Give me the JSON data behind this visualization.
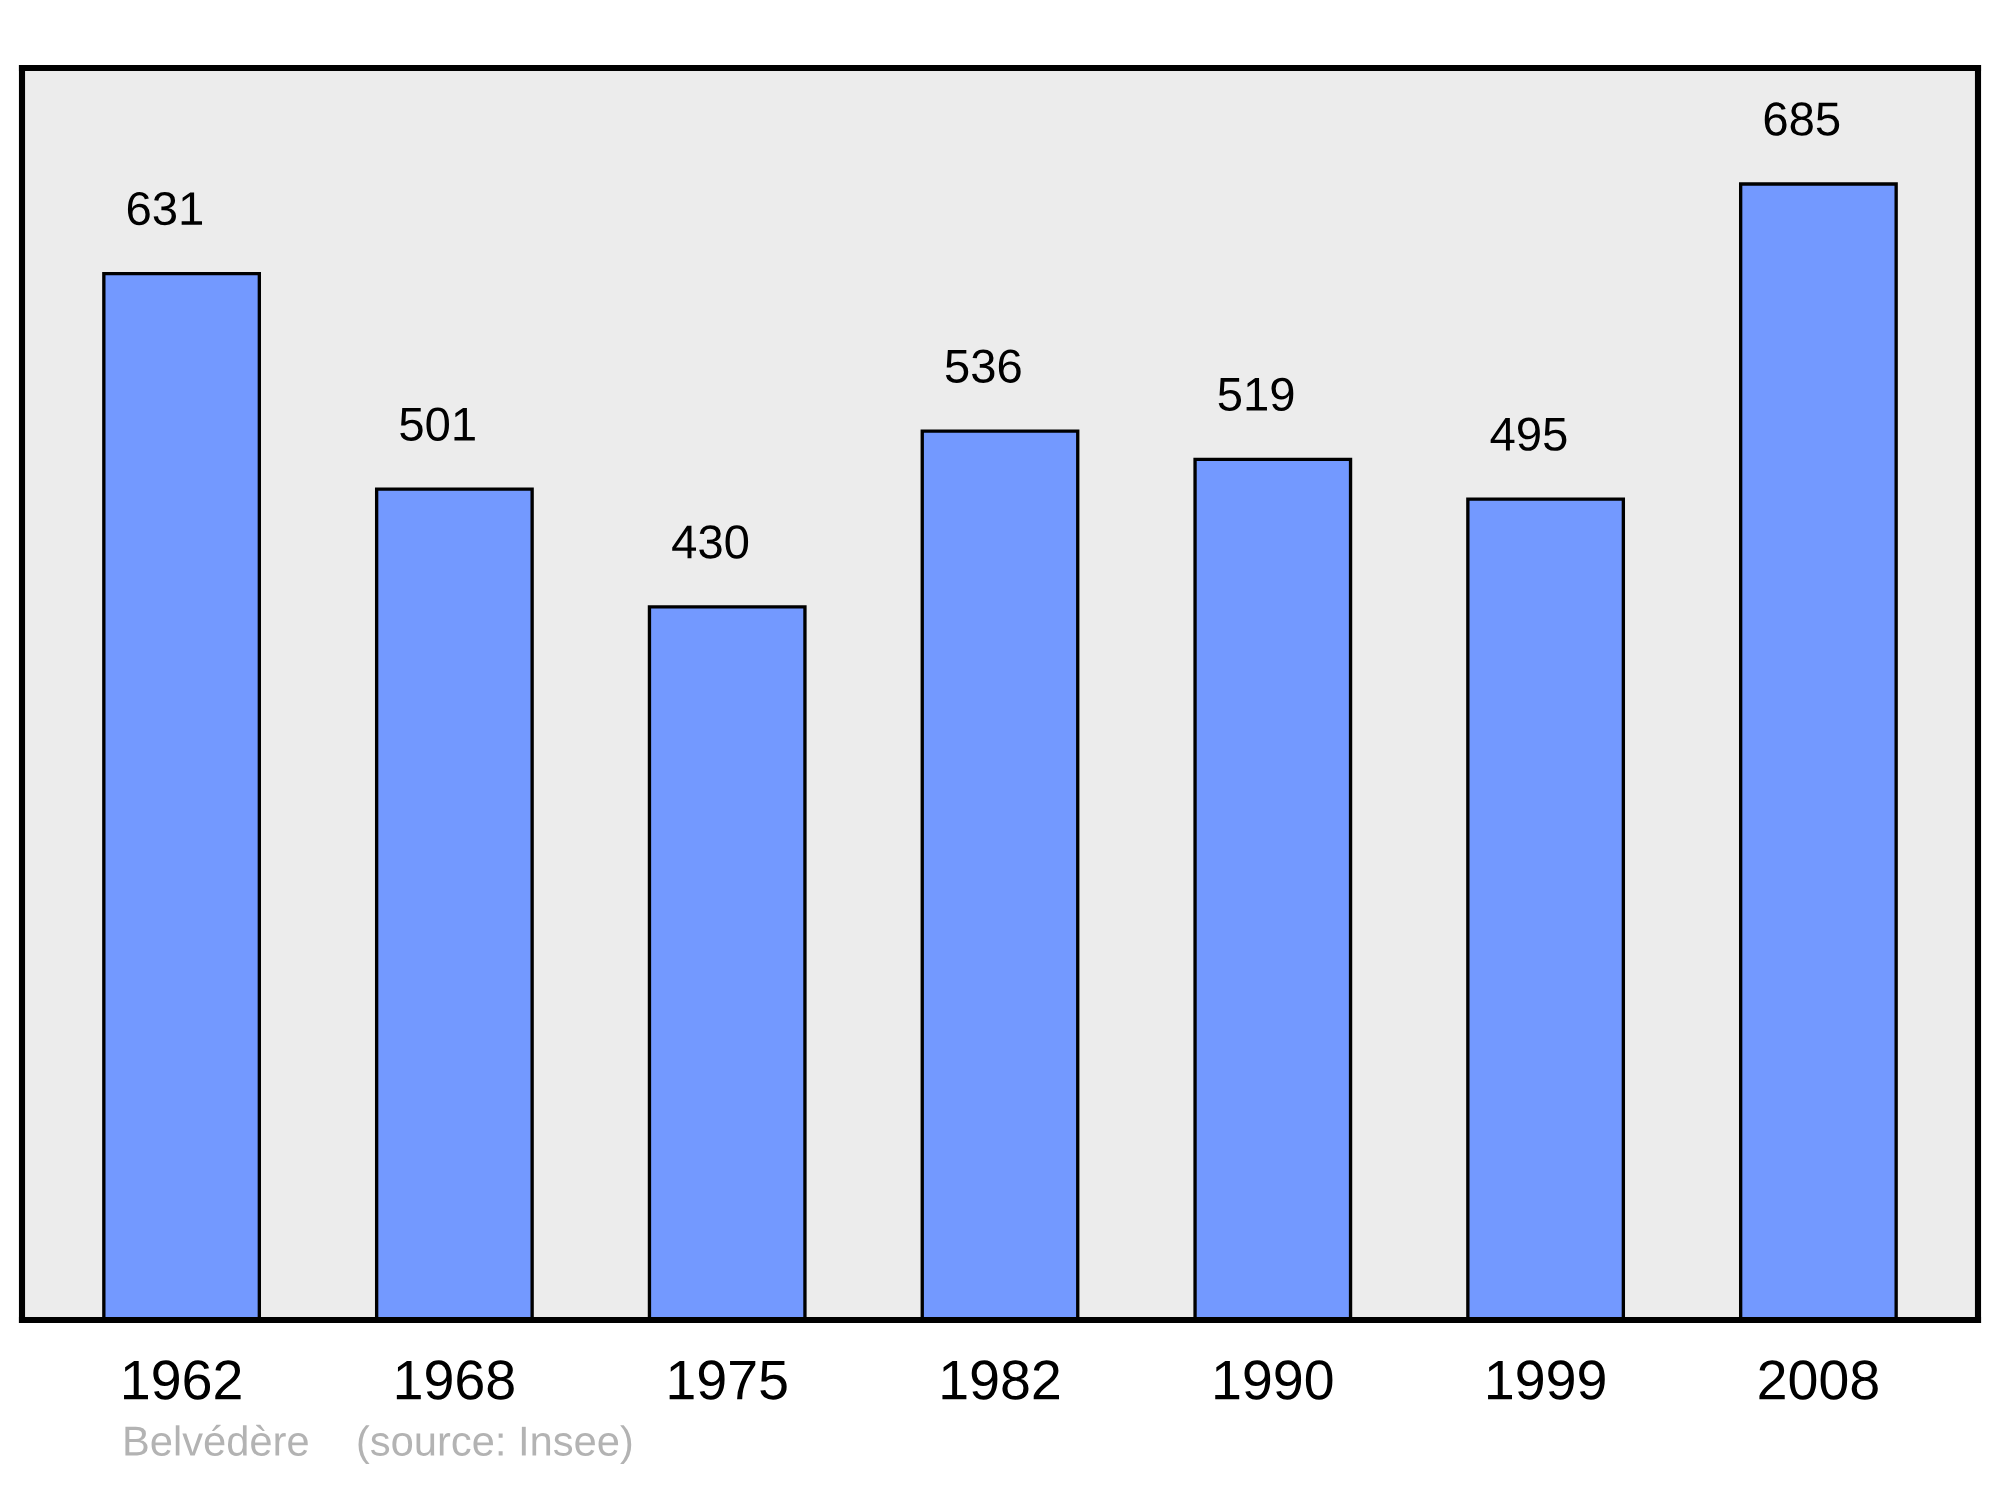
{
  "chart_data": {
    "type": "bar",
    "categories": [
      "1962",
      "1968",
      "1975",
      "1982",
      "1990",
      "1999",
      "2008"
    ],
    "values": [
      631,
      501,
      430,
      536,
      519,
      495,
      685
    ],
    "color": "#7399ff",
    "data_labels": true,
    "tick_labels": "x",
    "grid": false,
    "legend": false,
    "annotations": [
      "Belvédère    (source: Insee)"
    ]
  }
}
